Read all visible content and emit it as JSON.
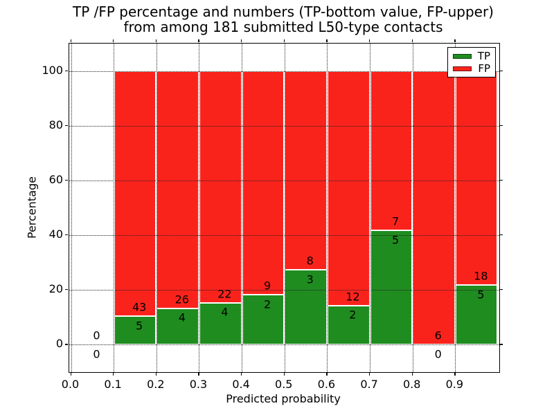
{
  "title": {
    "line1": "TP /FP percentage and numbers (TP-bottom value, FP-upper)",
    "line2": "from among 181 submitted L50-type contacts"
  },
  "axes": {
    "x_label": "Predicted probability",
    "y_label": "Percentage",
    "x_tick_labels": [
      "0.0",
      "0.1",
      "0.2",
      "0.3",
      "0.4",
      "0.5",
      "0.6",
      "0.7",
      "0.8",
      "0.9"
    ],
    "y_tick_labels": [
      "0",
      "20",
      "40",
      "60",
      "80",
      "100"
    ]
  },
  "legend": {
    "items": [
      {
        "label": "TP",
        "color": "#1f8c1f"
      },
      {
        "label": "FP",
        "color": "#fa231c"
      }
    ],
    "position": "upper right"
  },
  "colors": {
    "tp": "#1f8c1f",
    "fp": "#fa231c",
    "bar_edge": "#ffffff",
    "grid": "#222222",
    "axis": "#000000",
    "background": "#ffffff"
  },
  "chart_data": {
    "type": "bar",
    "stacked": true,
    "normalized_to_percent": true,
    "title": "TP /FP percentage and numbers (TP-bottom value, FP-upper) from among 181 submitted L50-type contacts",
    "xlabel": "Predicted probability",
    "ylabel": "Percentage",
    "xlim": [
      0.0,
      1.0
    ],
    "ylim": [
      -10,
      110
    ],
    "grid": true,
    "total_contacts": 181,
    "bin_width": 0.1,
    "categories": [
      "0.0-0.1",
      "0.1-0.2",
      "0.2-0.3",
      "0.3-0.4",
      "0.4-0.5",
      "0.5-0.6",
      "0.6-0.7",
      "0.7-0.8",
      "0.8-0.9",
      "0.9-1.0"
    ],
    "series": [
      {
        "name": "TP",
        "values": [
          0,
          5,
          4,
          4,
          2,
          3,
          2,
          5,
          0,
          5
        ]
      },
      {
        "name": "FP",
        "values": [
          0,
          43,
          26,
          22,
          9,
          8,
          12,
          7,
          6,
          18
        ]
      }
    ],
    "bins": [
      {
        "range": "0.0-0.1",
        "tp": 0,
        "fp": 0,
        "tp_pct": null
      },
      {
        "range": "0.1-0.2",
        "tp": 5,
        "fp": 43,
        "tp_pct": 10.42
      },
      {
        "range": "0.2-0.3",
        "tp": 4,
        "fp": 26,
        "tp_pct": 13.33
      },
      {
        "range": "0.3-0.4",
        "tp": 4,
        "fp": 22,
        "tp_pct": 15.38
      },
      {
        "range": "0.4-0.5",
        "tp": 2,
        "fp": 9,
        "tp_pct": 18.18
      },
      {
        "range": "0.5-0.6",
        "tp": 3,
        "fp": 8,
        "tp_pct": 27.27
      },
      {
        "range": "0.6-0.7",
        "tp": 2,
        "fp": 12,
        "tp_pct": 14.29
      },
      {
        "range": "0.7-0.8",
        "tp": 5,
        "fp": 7,
        "tp_pct": 41.67
      },
      {
        "range": "0.8-0.9",
        "tp": 0,
        "fp": 6,
        "tp_pct": 0.0
      },
      {
        "range": "0.9-1.0",
        "tp": 5,
        "fp": 18,
        "tp_pct": 21.74
      }
    ]
  }
}
